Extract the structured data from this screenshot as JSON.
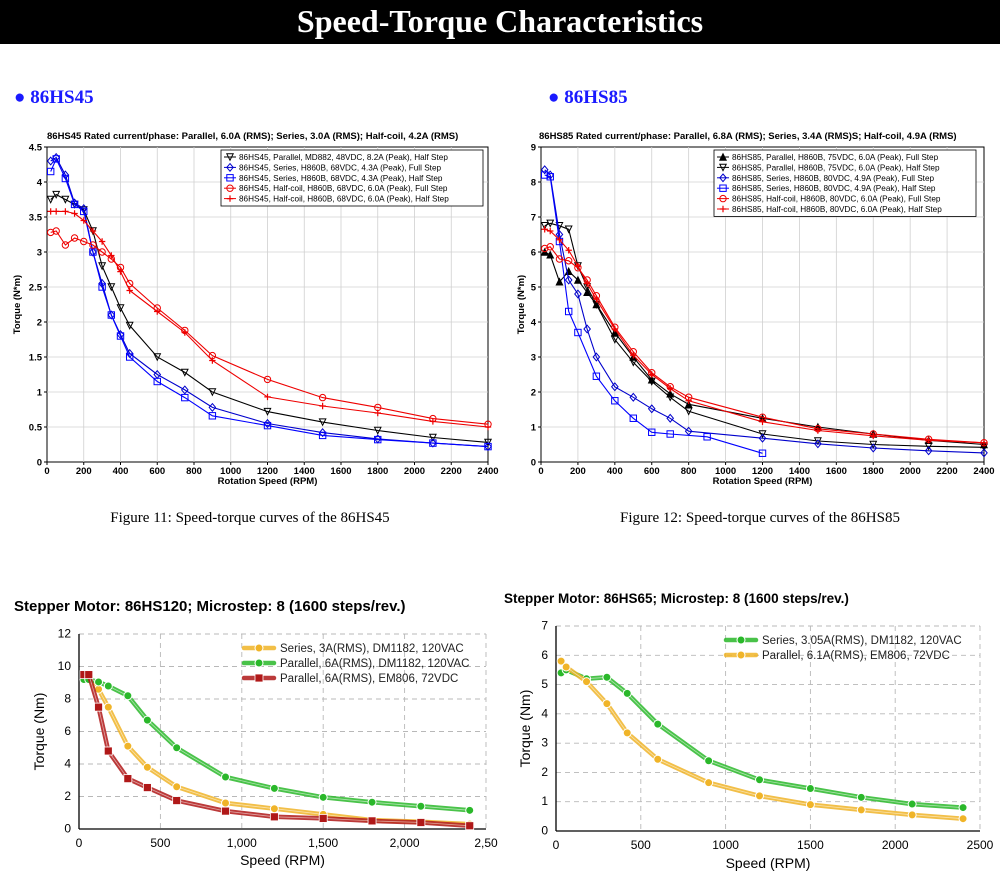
{
  "header": {
    "title": "Speed-Torque Characteristics"
  },
  "sections": [
    {
      "bullet": "● 86HS45",
      "caption": "Figure 11: Speed-torque curves of the 86HS45"
    },
    {
      "bullet": "● 86HS85",
      "caption": "Figure 12: Speed-torque curves of the 86HS85"
    }
  ],
  "chart_data": [
    {
      "type": "line",
      "title": "86HS45 Rated current/phase: Parallel, 6.0A (RMS); Series, 3.0A (RMS); Half-coil, 4.2A (RMS)",
      "xlabel": "Rotation Speed (RPM)",
      "ylabel": "Torque (N*m)",
      "xlim": [
        0,
        2400
      ],
      "ylim": [
        0,
        4.5
      ],
      "xticks": [
        "0",
        "200",
        "400",
        "600",
        "800",
        "1000",
        "1200",
        "1400",
        "1600",
        "1800",
        "2000",
        "2200",
        "2400"
      ],
      "yticks": [
        "0",
        "0.5",
        "1",
        "1.5",
        "2",
        "2.5",
        "3",
        "3.5",
        "4",
        "4.5"
      ],
      "grid": true,
      "legend_position": "top-right",
      "series": [
        {
          "name": "86HS45, Parallel, MD882, 48VDC, 8.2A (Peak), Half Step",
          "color": "#000000",
          "marker": "tri-down",
          "x": [
            20,
            50,
            100,
            150,
            200,
            250,
            300,
            350,
            400,
            450,
            600,
            750,
            900,
            1200,
            1500,
            1800,
            2100,
            2400
          ],
          "y": [
            3.75,
            3.82,
            3.75,
            3.68,
            3.6,
            3.3,
            2.8,
            2.5,
            2.2,
            1.95,
            1.5,
            1.28,
            1.0,
            0.72,
            0.57,
            0.45,
            0.35,
            0.28
          ]
        },
        {
          "name": "86HS45, Series, H860B, 68VDC, 4.3A (Peak), Full Step",
          "color": "#0000cc",
          "marker": "diamond",
          "x": [
            20,
            50,
            100,
            150,
            200,
            250,
            300,
            350,
            400,
            450,
            600,
            750,
            900,
            1200,
            1500,
            1800,
            2100,
            2400
          ],
          "y": [
            4.3,
            4.35,
            4.1,
            3.7,
            3.62,
            3.0,
            2.55,
            2.1,
            1.82,
            1.55,
            1.25,
            1.03,
            0.78,
            0.55,
            0.42,
            0.33,
            0.27,
            0.22
          ]
        },
        {
          "name": "86HS45, Series, H860B, 68VDC, 4.3A (Peak), Half Step",
          "color": "#0000ff",
          "marker": "square",
          "x": [
            20,
            50,
            100,
            150,
            200,
            250,
            300,
            350,
            400,
            450,
            600,
            750,
            900,
            1200,
            1500,
            1800,
            2100,
            2400
          ],
          "y": [
            4.15,
            4.33,
            4.05,
            3.68,
            3.58,
            3.0,
            2.5,
            2.1,
            1.8,
            1.5,
            1.15,
            0.92,
            0.66,
            0.52,
            0.38,
            0.32,
            0.27,
            0.22
          ]
        },
        {
          "name": "86HS45, Half-coil, H860B, 68VDC, 6.0A (Peak), Full Step",
          "color": "#ee0000",
          "marker": "circle",
          "x": [
            20,
            50,
            100,
            150,
            200,
            250,
            300,
            350,
            400,
            450,
            600,
            750,
            900,
            1200,
            1500,
            1800,
            2100,
            2400
          ],
          "y": [
            3.28,
            3.3,
            3.1,
            3.2,
            3.15,
            3.1,
            3.0,
            2.9,
            2.78,
            2.55,
            2.2,
            1.88,
            1.52,
            1.18,
            0.92,
            0.78,
            0.62,
            0.54
          ]
        },
        {
          "name": "86HS45, Half-coil, H860B, 68VDC, 6.0A (Peak), Half Step",
          "color": "#ee0000",
          "marker": "plus",
          "x": [
            20,
            50,
            100,
            150,
            200,
            250,
            300,
            350,
            400,
            450,
            600,
            750,
            900,
            1200,
            1500,
            1800,
            2100,
            2400
          ],
          "y": [
            3.58,
            3.58,
            3.58,
            3.55,
            3.45,
            3.3,
            3.15,
            2.95,
            2.72,
            2.45,
            2.15,
            1.85,
            1.45,
            0.93,
            0.8,
            0.7,
            0.58,
            0.5
          ]
        }
      ]
    },
    {
      "type": "line",
      "title": "86HS85 Rated current/phase: Parallel, 6.8A (RMS); Series, 3.4A (RMS)S; Half-coil, 4.9A (RMS)",
      "xlabel": "Rotation Speed (RPM)",
      "ylabel": "Torque (N*m)",
      "xlim": [
        0,
        2400
      ],
      "ylim": [
        0,
        9
      ],
      "xticks": [
        "0",
        "200",
        "400",
        "600",
        "800",
        "1000",
        "1200",
        "1400",
        "1600",
        "1800",
        "2000",
        "2200",
        "2400"
      ],
      "yticks": [
        "0",
        "1",
        "2",
        "3",
        "4",
        "5",
        "6",
        "7",
        "8",
        "9"
      ],
      "grid": true,
      "legend_position": "top-right",
      "series": [
        {
          "name": "86HS85, Parallel, H860B, 75VDC, 6.0A (Peak), Full Step",
          "color": "#000000",
          "marker": "tri-up",
          "x": [
            20,
            50,
            100,
            150,
            200,
            250,
            300,
            400,
            500,
            600,
            700,
            800,
            1200,
            1500,
            1800,
            2100,
            2400
          ],
          "y": [
            6.0,
            5.92,
            5.15,
            5.45,
            5.2,
            4.85,
            4.5,
            3.7,
            3.0,
            2.35,
            1.95,
            1.65,
            1.25,
            1.0,
            0.8,
            0.62,
            0.5
          ]
        },
        {
          "name": "86HS85, Parallel, H860B, 75VDC, 6.0A (Peak), Half Step",
          "color": "#000000",
          "marker": "tri-down",
          "x": [
            20,
            50,
            100,
            150,
            200,
            250,
            300,
            400,
            500,
            600,
            700,
            800,
            1200,
            1500,
            1800,
            2100,
            2400
          ],
          "y": [
            6.75,
            6.82,
            6.75,
            6.65,
            5.6,
            5.0,
            4.5,
            3.5,
            2.85,
            2.3,
            1.85,
            1.45,
            0.8,
            0.6,
            0.5,
            0.45,
            0.42
          ]
        },
        {
          "name": "86HS85, Series, H860B, 80VDC, 4.9A (Peak), Full Step",
          "color": "#0000cc",
          "marker": "diamond",
          "x": [
            20,
            50,
            100,
            150,
            200,
            250,
            300,
            400,
            500,
            600,
            700,
            800,
            1200,
            1500,
            1800,
            2100,
            2400
          ],
          "y": [
            8.35,
            8.2,
            6.5,
            5.2,
            4.8,
            3.8,
            3.0,
            2.15,
            1.85,
            1.52,
            1.25,
            0.88,
            0.68,
            0.52,
            0.4,
            0.32,
            0.26
          ]
        },
        {
          "name": "86HS85, Series, H860B, 80VDC, 4.9A (Peak), Half Step",
          "color": "#0000ff",
          "marker": "square",
          "x": [
            20,
            50,
            100,
            150,
            200,
            300,
            400,
            500,
            600,
            700,
            900,
            1200
          ],
          "y": [
            8.2,
            8.15,
            6.3,
            4.3,
            3.7,
            2.45,
            1.75,
            1.25,
            0.85,
            0.8,
            0.72,
            0.25
          ]
        },
        {
          "name": "86HS85, Half-coil, H860B, 80VDC, 6.0A (Peak), Full Step",
          "color": "#ee0000",
          "marker": "circle",
          "x": [
            20,
            50,
            100,
            150,
            200,
            250,
            300,
            400,
            500,
            600,
            700,
            800,
            1200,
            1500,
            1800,
            2100,
            2400
          ],
          "y": [
            6.1,
            6.15,
            5.8,
            5.75,
            5.55,
            5.2,
            4.75,
            3.85,
            3.15,
            2.55,
            2.15,
            1.85,
            1.28,
            0.95,
            0.8,
            0.65,
            0.55
          ]
        },
        {
          "name": "86HS85, Half-coil, H860B, 80VDC, 6.0A (Peak), Half Step",
          "color": "#ee0000",
          "marker": "plus",
          "x": [
            20,
            50,
            100,
            150,
            200,
            250,
            300,
            400,
            500,
            600,
            700,
            800,
            1200,
            1500,
            1800,
            2100,
            2400
          ],
          "y": [
            6.65,
            6.6,
            6.35,
            6.05,
            5.6,
            5.1,
            4.65,
            3.8,
            3.05,
            2.5,
            2.1,
            1.75,
            1.15,
            0.9,
            0.75,
            0.62,
            0.55
          ]
        }
      ]
    },
    {
      "type": "line",
      "title": "Stepper Motor: 86HS120; Microstep: 8 (1600 steps/rev.)",
      "xlabel": "Speed (RPM)",
      "ylabel": "Torque (Nm)",
      "xlim": [
        0,
        2500
      ],
      "ylim": [
        0,
        12
      ],
      "xticks": [
        "0",
        "500",
        "1,000",
        "1,500",
        "2,000",
        "2,50"
      ],
      "yticks": [
        "0",
        "2",
        "4",
        "6",
        "8",
        "10",
        "12"
      ],
      "grid": true,
      "legend_position": "top-right",
      "series": [
        {
          "name": "Series, 3A(RMS), DM1182, 120VAC",
          "color": "#f0b428",
          "marker": "circle",
          "x": [
            30,
            60,
            120,
            180,
            300,
            420,
            600,
            900,
            1200,
            1500,
            1800,
            2100,
            2400
          ],
          "y": [
            9.2,
            9.15,
            8.6,
            7.5,
            5.1,
            3.8,
            2.6,
            1.6,
            1.25,
            0.9,
            0.55,
            0.45,
            0.3
          ]
        },
        {
          "name": "Parallel, 6A(RMS), DM1182, 120VAC",
          "color": "#2ab82a",
          "marker": "circle",
          "x": [
            30,
            60,
            120,
            180,
            300,
            420,
            600,
            900,
            1200,
            1500,
            1800,
            2100,
            2400
          ],
          "y": [
            9.2,
            9.2,
            9.05,
            8.8,
            8.2,
            6.7,
            5.0,
            3.2,
            2.5,
            1.95,
            1.65,
            1.4,
            1.15
          ]
        },
        {
          "name": "Parallel, 6A(RMS), EM806, 72VDC",
          "color": "#b01818",
          "marker": "square",
          "x": [
            30,
            60,
            120,
            180,
            300,
            420,
            600,
            900,
            1200,
            1500,
            1800,
            2100,
            2400
          ],
          "y": [
            9.5,
            9.5,
            7.5,
            4.8,
            3.1,
            2.55,
            1.75,
            1.1,
            0.75,
            0.65,
            0.5,
            0.4,
            0.2
          ]
        }
      ]
    },
    {
      "type": "line",
      "title": "Stepper Motor: 86HS65; Microstep: 8 (1600 steps/rev.)",
      "xlabel": "Speed (RPM)",
      "ylabel": "Torque (Nm)",
      "xlim": [
        0,
        2500
      ],
      "ylim": [
        0,
        7
      ],
      "xticks": [
        "0",
        "500",
        "1000",
        "1500",
        "2000",
        "2500"
      ],
      "yticks": [
        "0",
        "1",
        "2",
        "3",
        "4",
        "5",
        "6",
        "7"
      ],
      "grid": true,
      "legend_position": "top-right",
      "series": [
        {
          "name": "Series, 3.05A(RMS), DM1182, 120VAC",
          "color": "#2ab82a",
          "marker": "circle",
          "x": [
            30,
            60,
            180,
            300,
            420,
            600,
            900,
            1200,
            1500,
            1800,
            2100,
            2400
          ],
          "y": [
            5.4,
            5.5,
            5.2,
            5.25,
            4.7,
            3.65,
            2.4,
            1.75,
            1.45,
            1.15,
            0.92,
            0.8
          ]
        },
        {
          "name": "Parallel, 6.1A(RMS), EM806, 72VDC",
          "color": "#f0b428",
          "marker": "circle",
          "x": [
            30,
            60,
            180,
            300,
            420,
            600,
            900,
            1200,
            1500,
            1800,
            2100,
            2400
          ],
          "y": [
            5.8,
            5.6,
            5.1,
            4.35,
            3.35,
            2.45,
            1.65,
            1.2,
            0.9,
            0.72,
            0.55,
            0.42
          ]
        }
      ]
    }
  ]
}
